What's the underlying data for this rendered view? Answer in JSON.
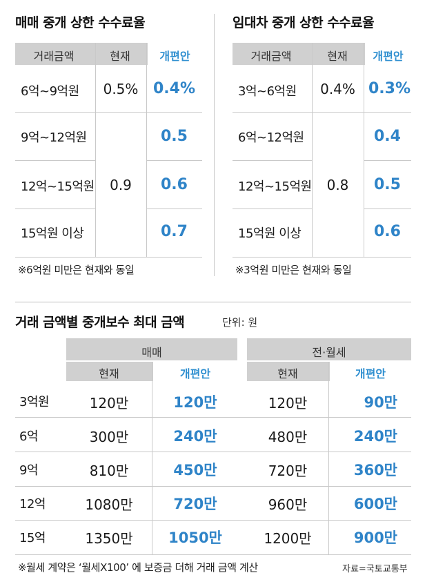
{
  "sale": {
    "title": "매매 중개 상한 수수료율",
    "headers": [
      "거래금액",
      "현재",
      "개편안"
    ],
    "rows": [
      {
        "amount": "6억~9억원",
        "proposed": "0.4%"
      },
      {
        "amount": "9억~12억원",
        "proposed": "0.5"
      },
      {
        "amount": "12억~15억원",
        "proposed": "0.6"
      },
      {
        "amount": "15억원 이상",
        "proposed": "0.7"
      }
    ],
    "current_first": "0.5%",
    "current_rest": "0.9",
    "note": "※6억원 미만은 현재와 동일"
  },
  "rent": {
    "title": "임대차 중개 상한 수수료율",
    "headers": [
      "거래금액",
      "현재",
      "개편안"
    ],
    "rows": [
      {
        "amount": "3억~6억원",
        "proposed": "0.3%"
      },
      {
        "amount": "6억~12억원",
        "proposed": "0.4"
      },
      {
        "amount": "12억~15억원",
        "proposed": "0.5"
      },
      {
        "amount": "15억원 이상",
        "proposed": "0.6"
      }
    ],
    "current_first": "0.4%",
    "current_rest": "0.8",
    "note": "※3억원 미만은 현재와 동일"
  },
  "fees": {
    "title": "거래 금액별 중개보수 최대 금액",
    "unit": "단위: 원",
    "group_sale": "매매",
    "group_rent": "전·월세",
    "sub_current": "현재",
    "sub_proposed": "개편안",
    "rows": [
      {
        "amount": "3억원",
        "sale_current": "120만",
        "sale_proposed": "120만",
        "rent_current": "120만",
        "rent_proposed": "90만"
      },
      {
        "amount": "6억",
        "sale_current": "300만",
        "sale_proposed": "240만",
        "rent_current": "480만",
        "rent_proposed": "240만"
      },
      {
        "amount": "9억",
        "sale_current": "810만",
        "sale_proposed": "450만",
        "rent_current": "720만",
        "rent_proposed": "360만"
      },
      {
        "amount": "12억",
        "sale_current": "1080만",
        "sale_proposed": "720만",
        "rent_current": "960만",
        "rent_proposed": "600만"
      },
      {
        "amount": "15억",
        "sale_current": "1350만",
        "sale_proposed": "1050만",
        "rent_current": "1200만",
        "rent_proposed": "900만"
      }
    ],
    "note": "※월세 계약은 ‘월세X100’ 에 보증금 더해 거래 금액 계산",
    "source": "자료=국토교통부"
  },
  "colors": {
    "accent": "#2f84c8",
    "header_band": "#d0d0d0",
    "highlight_bg": "#ffffff"
  }
}
